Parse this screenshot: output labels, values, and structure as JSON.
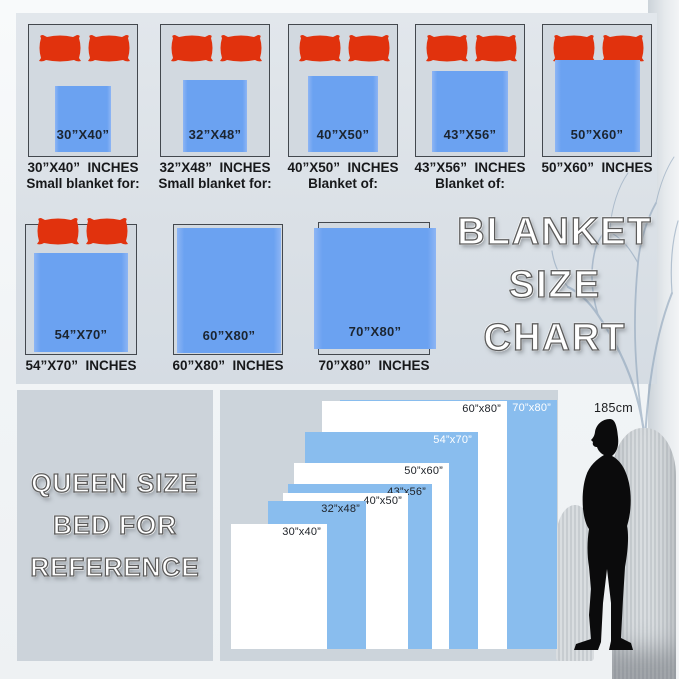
{
  "title": {
    "lines": [
      "BLANKET",
      "SIZE",
      "CHART"
    ]
  },
  "reference": {
    "lines": [
      "QUEEN SIZE",
      "BED FOR",
      "REFERENCE"
    ]
  },
  "row1": [
    {
      "blanket_label": "30”X40”",
      "caption_line1": "30”X40”  INCHES",
      "caption_line2": "Small blanket for:",
      "pillows": true
    },
    {
      "blanket_label": "32”X48”",
      "caption_line1": "32”X48”  INCHES",
      "caption_line2": "Small blanket for:",
      "pillows": true
    },
    {
      "blanket_label": "40”X50”",
      "caption_line1": "40”X50”  INCHES",
      "caption_line2": "Blanket of:",
      "pillows": true
    },
    {
      "blanket_label": "43”X56”",
      "caption_line1": "43”X56”  INCHES",
      "caption_line2": "Blanket of:",
      "pillows": true
    },
    {
      "blanket_label": "50”X60”",
      "caption_line1": "50”X60”  INCHES",
      "caption_line2": "",
      "pillows": true
    }
  ],
  "row2": [
    {
      "blanket_label": "54”X70”",
      "caption_line1": "54”X70”  INCHES",
      "caption_line2": "",
      "pillows": true
    },
    {
      "blanket_label": "60”X80”",
      "caption_line1": "60”X80”  INCHES",
      "caption_line2": "",
      "pillows": false
    },
    {
      "blanket_label": "70”X80”",
      "caption_line1": "70”X80”  INCHES",
      "caption_line2": "",
      "pillows": false
    }
  ],
  "size_overlay": {
    "rects": [
      {
        "label": "30”x40”",
        "fill": "white"
      },
      {
        "label": "32”x48”",
        "fill": "blue"
      },
      {
        "label": "40”x50”",
        "fill": "white"
      },
      {
        "label": "43”x56”",
        "fill": "blue"
      },
      {
        "label": "50”x60”",
        "fill": "white"
      },
      {
        "label": "54”x70”",
        "fill": "blue"
      },
      {
        "label": "60”x80”",
        "fill": "white"
      },
      {
        "label": "70”x80”",
        "fill": "blue"
      }
    ]
  },
  "figure": {
    "height_label": "185cm"
  },
  "colors": {
    "pillow_red": "#e1320d",
    "card_blanket_blue": "#6ba2f1",
    "overlay_blue": "#89bdee",
    "panel_gray": "#ccd4db"
  }
}
